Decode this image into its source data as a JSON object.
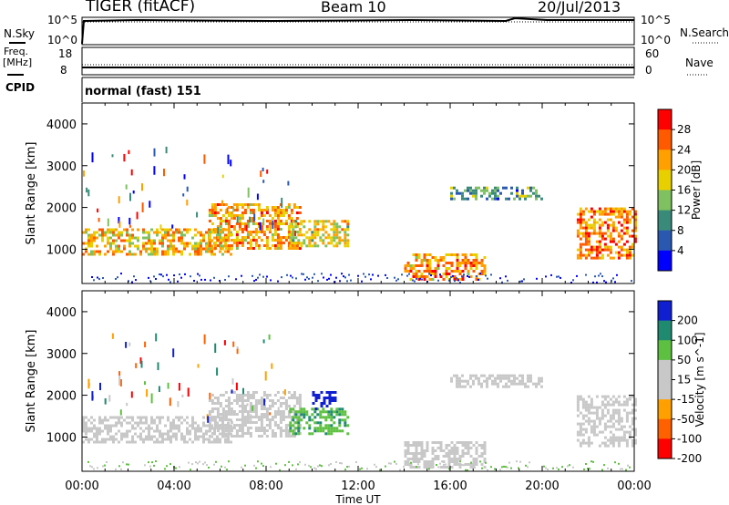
{
  "header": {
    "station": "TIGER (fitACF)",
    "beam": "Beam 10",
    "date": "20/Jul/2013"
  },
  "top_panels": {
    "nsky_label": "N.Sky",
    "nsky_ticks": [
      "10^5",
      "10^0"
    ],
    "nsearch_label": "N.Search",
    "nsearch_ticks": [
      "10^5",
      "10^0"
    ],
    "freq_label": "Freq.",
    "freq_unit": "[MHz]",
    "freq_ticks": [
      "18",
      "8"
    ],
    "nave_label": "Nave",
    "nave_ticks": [
      "60",
      "0"
    ],
    "cpid_label": "CPID",
    "cpid_value": "normal (fast) 151"
  },
  "chart_data": [
    {
      "type": "heatmap",
      "title": "",
      "xlabel": "",
      "ylabel": "Slant Range [km]",
      "y_ticks": [
        "4000",
        "3000",
        "2000",
        "1000"
      ],
      "ylim": [
        180,
        4500
      ],
      "colorbar_label": "Power [dB]",
      "colorbar_ticks": [
        "28",
        "24",
        "20",
        "16",
        "12",
        "8",
        "4"
      ],
      "colorbar_colors": [
        "#ff0000",
        "#ff5a00",
        "#ffa000",
        "#e8d000",
        "#7fc060",
        "#3a8a7a",
        "#2a58b0",
        "#0000ff"
      ],
      "echo_regions": [
        {
          "t_start": 0.0,
          "t_end": 6.5,
          "r_low": 900,
          "r_high": 1500,
          "power": 18
        },
        {
          "t_start": 5.5,
          "t_end": 9.5,
          "r_low": 1000,
          "r_high": 2100,
          "power": 20
        },
        {
          "t_start": 9.0,
          "t_end": 11.5,
          "r_low": 1100,
          "r_high": 1700,
          "power": 16
        },
        {
          "t_start": 14.0,
          "t_end": 17.5,
          "r_low": 300,
          "r_high": 900,
          "power": 20
        },
        {
          "t_start": 16.0,
          "t_end": 20.0,
          "r_low": 2200,
          "r_high": 2500,
          "power": 8
        },
        {
          "t_start": 21.5,
          "t_end": 24.0,
          "r_low": 800,
          "r_high": 2000,
          "power": 22
        }
      ]
    },
    {
      "type": "heatmap",
      "title": "",
      "xlabel": "Time UT",
      "ylabel": "Slant Range [km]",
      "x_ticks": [
        "00:00",
        "04:00",
        "08:00",
        "12:00",
        "16:00",
        "20:00",
        "00:00"
      ],
      "y_ticks": [
        "4000",
        "3000",
        "2000",
        "1000"
      ],
      "ylim": [
        180,
        4500
      ],
      "colorbar_label": "Velocity [m s^-1]",
      "colorbar_ticks": [
        "200",
        "100",
        "50",
        "15",
        "-15",
        "-50",
        "-100",
        "-200"
      ],
      "colorbar_colors": [
        "#1020d0",
        "#208a70",
        "#5ec040",
        "#c8c8c8",
        "#c8c8c8",
        "#ffa000",
        "#ff6000",
        "#ff0000"
      ],
      "echo_regions": [
        {
          "t_start": 0.0,
          "t_end": 6.5,
          "r_low": 900,
          "r_high": 1500,
          "velocity": 0
        },
        {
          "t_start": 5.5,
          "t_end": 9.5,
          "r_low": 1000,
          "r_high": 2100,
          "velocity": 0
        },
        {
          "t_start": 9.0,
          "t_end": 11.5,
          "r_low": 1100,
          "r_high": 1700,
          "velocity": 60
        },
        {
          "t_start": 10.0,
          "t_end": 11.0,
          "r_low": 1700,
          "r_high": 2100,
          "velocity": 200
        },
        {
          "t_start": 14.0,
          "t_end": 17.5,
          "r_low": 300,
          "r_high": 900,
          "velocity": 0
        },
        {
          "t_start": 16.0,
          "t_end": 20.0,
          "r_low": 2200,
          "r_high": 2500,
          "velocity": 0
        },
        {
          "t_start": 21.5,
          "t_end": 24.0,
          "r_low": 800,
          "r_high": 2000,
          "velocity": 0
        }
      ]
    }
  ]
}
